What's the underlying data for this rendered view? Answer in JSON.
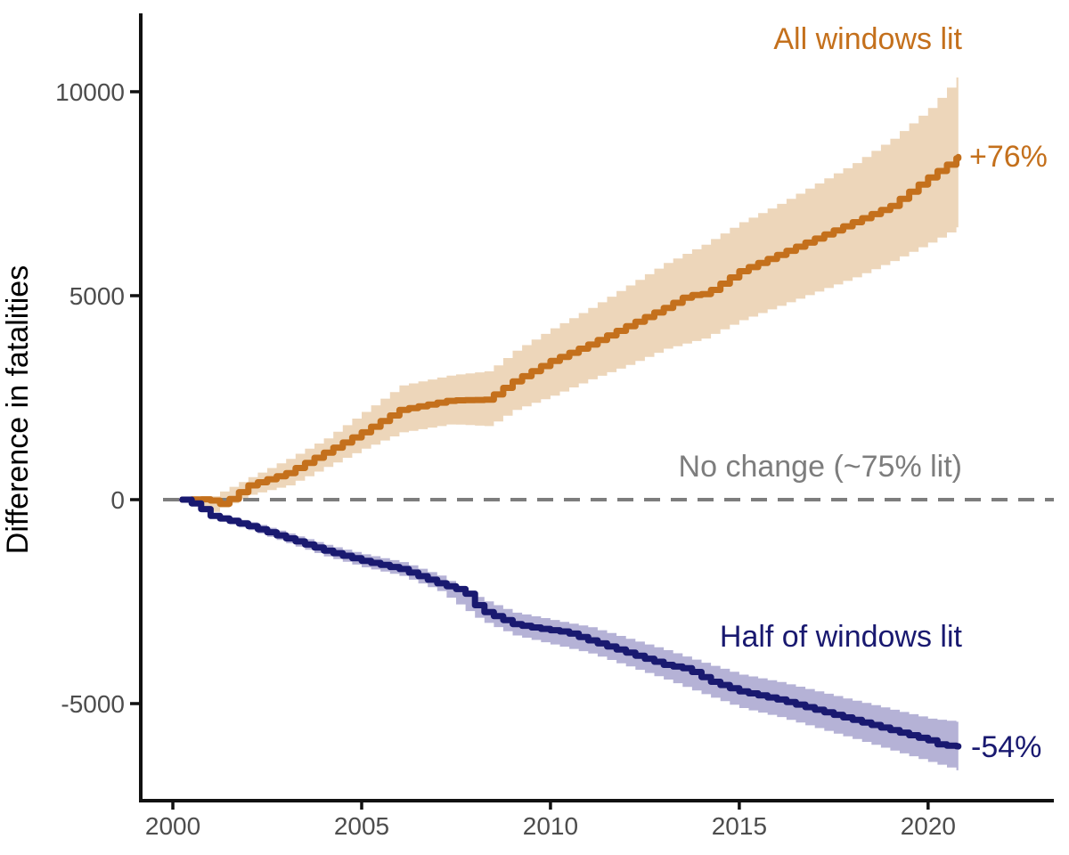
{
  "chart_data": {
    "type": "line",
    "title": "",
    "xlabel": "",
    "ylabel": "Difference in fatalities",
    "x_ticks": [
      "2000",
      "2005",
      "2010",
      "2015",
      "2020"
    ],
    "x_tick_values": [
      2000,
      2005,
      2010,
      2015,
      2020
    ],
    "y_ticks": [
      "10000",
      "5000",
      "0",
      "-5000"
    ],
    "y_tick_values": [
      10000,
      5000,
      0,
      -5000
    ],
    "xlim": [
      1999.15,
      2023.33
    ],
    "ylim": [
      -7380,
      11921
    ],
    "grid": false,
    "legend_position": "direct-labels",
    "reference_line": {
      "y": 0,
      "label": "No change (~75% lit)",
      "color": "#7d7d7d",
      "style": "dashed"
    },
    "series": [
      {
        "name": "All windows lit",
        "annotation": "+76%",
        "color": "#c4701c",
        "band_color": "#edd6ba",
        "x": [
          2000.25,
          2000.9,
          2001.3,
          2002,
          2003,
          2004,
          2005,
          2006,
          2007.3,
          2008.3,
          2009,
          2010,
          2011,
          2012,
          2013,
          2013.6,
          2014.1,
          2015,
          2016,
          2017,
          2018,
          2019,
          2020,
          2020.8
        ],
        "y": [
          0,
          10,
          -120,
          350,
          650,
          1150,
          1650,
          2200,
          2430,
          2450,
          2900,
          3400,
          3800,
          4250,
          4700,
          5000,
          5050,
          5600,
          6000,
          6400,
          6800,
          7200,
          7900,
          8400
        ],
        "band_x": [
          2000.25,
          2001,
          2002,
          2003,
          2004,
          2005,
          2006,
          2007.3,
          2008.3,
          2009,
          2010,
          2011,
          2012,
          2013,
          2014,
          2015,
          2016,
          2017,
          2018,
          2019,
          2020,
          2020.8
        ],
        "upper": [
          20,
          80,
          550,
          1000,
          1500,
          2150,
          2800,
          3050,
          3150,
          3650,
          4200,
          4700,
          5250,
          5800,
          6250,
          6800,
          7250,
          7750,
          8250,
          8850,
          9600,
          10400
        ],
        "lower": [
          -20,
          -300,
          120,
          350,
          800,
          1250,
          1650,
          1850,
          1800,
          2200,
          2550,
          2950,
          3300,
          3700,
          3950,
          4400,
          4750,
          5100,
          5450,
          5850,
          6300,
          6700
        ]
      },
      {
        "name": "Half of windows lit",
        "annotation": "-54%",
        "color": "#191970",
        "band_color": "#b5b2d6",
        "x": [
          2000.25,
          2000.6,
          2001,
          2001.5,
          2002,
          2003,
          2004,
          2005,
          2006,
          2007,
          2007.7,
          2008.1,
          2009,
          2009.6,
          2010.4,
          2011,
          2012,
          2013,
          2013.6,
          2014.2,
          2015,
          2016,
          2017,
          2018,
          2019,
          2020,
          2020.3,
          2020.8
        ],
        "y": [
          0,
          -130,
          -400,
          -520,
          -650,
          -950,
          -1250,
          -1500,
          -1700,
          -2050,
          -2250,
          -2700,
          -3050,
          -3150,
          -3250,
          -3450,
          -3750,
          -4050,
          -4150,
          -4450,
          -4700,
          -4900,
          -5150,
          -5400,
          -5650,
          -5900,
          -6020,
          -6050
        ],
        "band_x": [
          2000.25,
          2001,
          2002,
          2003,
          2004,
          2005,
          2006,
          2007,
          2008.1,
          2009,
          2010,
          2011,
          2012,
          2013,
          2014.2,
          2015,
          2016,
          2017,
          2018,
          2019,
          2020,
          2020.8
        ],
        "upper": [
          -10,
          -330,
          -550,
          -830,
          -1110,
          -1340,
          -1530,
          -1860,
          -2440,
          -2770,
          -2950,
          -3130,
          -3410,
          -3690,
          -4060,
          -4290,
          -4470,
          -4700,
          -4930,
          -5150,
          -5370,
          -5450
        ],
        "lower": [
          10,
          -470,
          -750,
          -1070,
          -1390,
          -1660,
          -1870,
          -2240,
          -2960,
          -3330,
          -3550,
          -3770,
          -4090,
          -4410,
          -4840,
          -5110,
          -5330,
          -5600,
          -5870,
          -6150,
          -6430,
          -6650
        ]
      }
    ],
    "styles": {
      "axis_color": "#111111",
      "tick_label_color": "#4d4d4d",
      "background": "#ffffff",
      "line_width": 7,
      "dash_pattern": "18 12"
    }
  }
}
